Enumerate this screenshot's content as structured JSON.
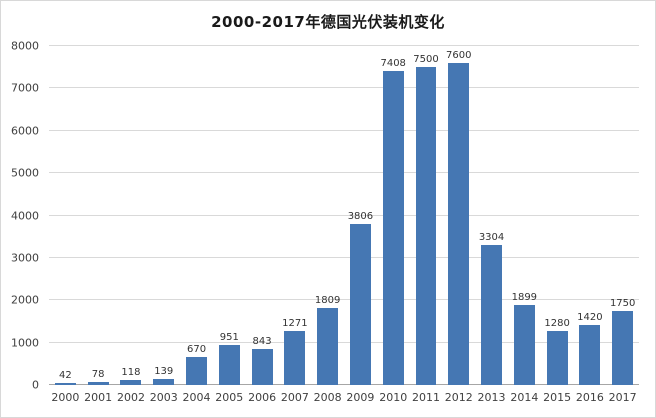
{
  "chart_data": {
    "type": "bar",
    "title": "2000-2017年德国光伏装机变化",
    "categories": [
      "2000",
      "2001",
      "2002",
      "2003",
      "2004",
      "2005",
      "2006",
      "2007",
      "2008",
      "2009",
      "2010",
      "2011",
      "2012",
      "2013",
      "2014",
      "2015",
      "2016",
      "2017"
    ],
    "values": [
      42,
      78,
      118,
      139,
      670,
      951,
      843,
      1271,
      1809,
      3806,
      7408,
      7500,
      7600,
      3304,
      1899,
      1280,
      1420,
      1750
    ],
    "xlabel": "",
    "ylabel": "",
    "ylim": [
      0,
      8000
    ],
    "ytick_step": 1000,
    "grid": true,
    "legend": "none",
    "bar_color": "#4577b3",
    "gridline_color": "#d9d9d9",
    "data_labels": true
  }
}
